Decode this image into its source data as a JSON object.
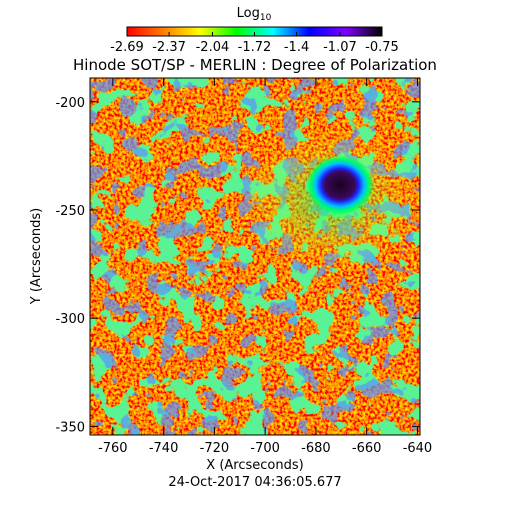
{
  "chart_data": {
    "type": "image",
    "title": "Hinode SOT/SP - MERLIN : Degree of Polarization",
    "xlabel": "X (Arcseconds)",
    "ylabel": "Y (Arcseconds)",
    "footer": "24-Oct-2017 04:36:05.677",
    "xlim": [
      -769,
      -639
    ],
    "xticks": [
      -760,
      -740,
      -720,
      -700,
      -680,
      -660,
      -640
    ],
    "ylim": [
      -354,
      -189
    ],
    "yticks": [
      -350,
      -300,
      -250,
      -200
    ],
    "colorbar": {
      "title": "Log",
      "title_sub": "10",
      "lim": [
        -2.69,
        -0.75
      ],
      "ticks": [
        -2.69,
        -2.37,
        -2.04,
        -1.72,
        -1.4,
        -1.07,
        -0.75
      ],
      "colormap": [
        "#ff0000",
        "#ff7f00",
        "#ffff00",
        "#00ff00",
        "#00ffff",
        "#0000ff",
        "#7f00ff",
        "#000000"
      ]
    }
  }
}
